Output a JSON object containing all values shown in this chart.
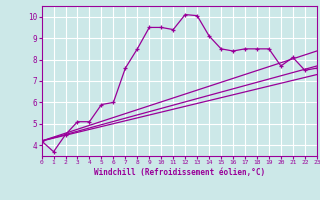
{
  "xlabel": "Windchill (Refroidissement éolien,°C)",
  "bg_color": "#cce8e8",
  "line_color": "#990099",
  "grid_color": "#ffffff",
  "xmin": 0,
  "xmax": 23,
  "ymin": 3.5,
  "ymax": 10.5,
  "yticks": [
    4,
    5,
    6,
    7,
    8,
    9,
    10
  ],
  "xticks": [
    0,
    1,
    2,
    3,
    4,
    5,
    6,
    7,
    8,
    9,
    10,
    11,
    12,
    13,
    14,
    15,
    16,
    17,
    18,
    19,
    20,
    21,
    22,
    23
  ],
  "series1_x": [
    0,
    1,
    2,
    3,
    4,
    5,
    6,
    7,
    8,
    9,
    10,
    11,
    12,
    13,
    14,
    15,
    16,
    17,
    18,
    19,
    20,
    21,
    22,
    23
  ],
  "series1_y": [
    4.2,
    3.7,
    4.5,
    5.1,
    5.1,
    5.9,
    6.0,
    7.6,
    8.5,
    9.5,
    9.5,
    9.4,
    10.1,
    10.05,
    9.1,
    8.5,
    8.4,
    8.5,
    8.5,
    8.5,
    7.7,
    8.1,
    7.5,
    7.6
  ],
  "series2_x": [
    0,
    23
  ],
  "series2_y": [
    4.2,
    8.4
  ],
  "series3_x": [
    0,
    23
  ],
  "series3_y": [
    4.2,
    7.7
  ],
  "series4_x": [
    0,
    23
  ],
  "series4_y": [
    4.2,
    7.3
  ]
}
